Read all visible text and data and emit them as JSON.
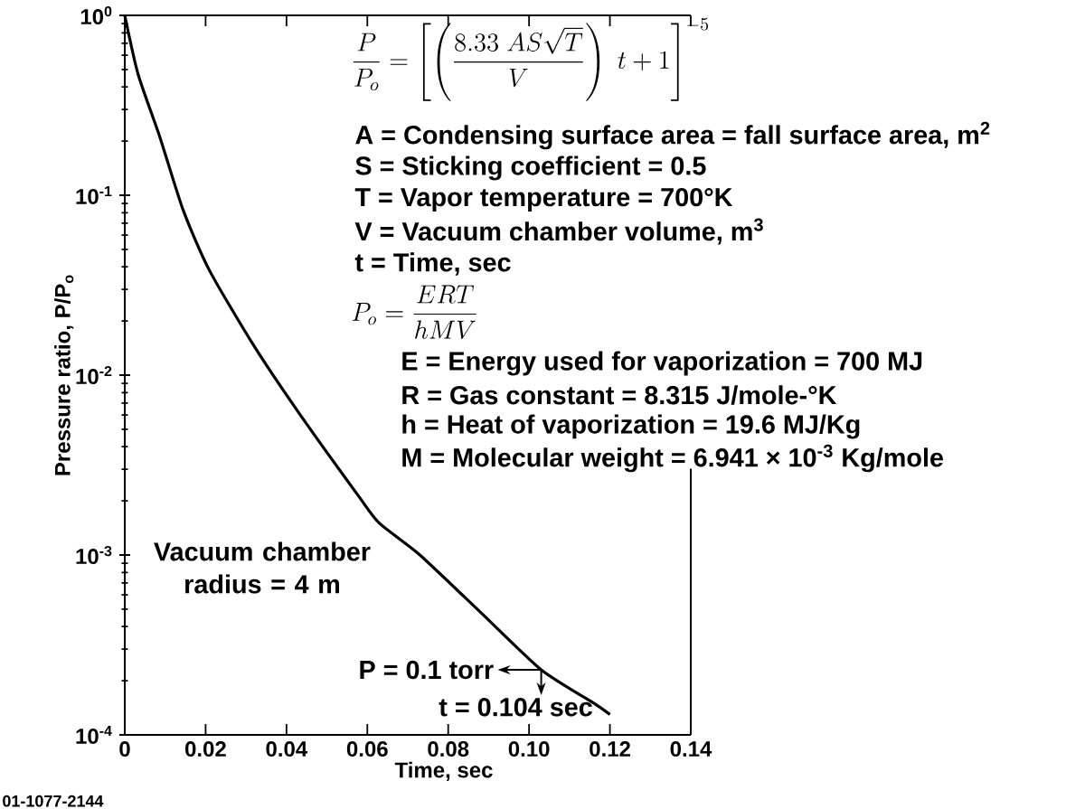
{
  "chart_data": {
    "type": "line",
    "xlabel": "Time, sec",
    "ylabel": "Pressure ratio, P/P$_{o}$",
    "log": "y",
    "marker": "none",
    "line_style": "solid",
    "xlim": [
      0,
      0.14
    ],
    "ylim": [
      0.0001,
      1
    ],
    "xticks": [
      0,
      0.02,
      0.04,
      0.06,
      0.08,
      {
        "value": 0.1,
        "label": "0.10"
      },
      0.12,
      0.14
    ],
    "yticks": [
      {
        "value": 1,
        "label": "10$^{0}$"
      },
      {
        "value": 0.1,
        "label": "10$^{-1}$"
      },
      {
        "value": 0.01,
        "label": "10$^{-2}$"
      },
      {
        "value": 0.001,
        "label": "10$^{-3}$"
      },
      {
        "value": 0.0001,
        "label": "10$^{-4}$"
      }
    ],
    "x": [
      0,
      0.0033,
      0.0087,
      0.0145,
      0.021,
      0.032,
      0.043,
      0.058,
      0.063,
      0.073,
      0.088,
      0.103,
      0.116,
      0.12
    ],
    "series": [
      {
        "color": "#000000",
        "values": [
          1.0,
          0.47,
          0.21,
          0.082,
          0.038,
          0.0145,
          0.0062,
          0.0021,
          0.0015,
          0.001,
          0.00048,
          0.00023,
          0.00015,
          0.00013
        ]
      }
    ],
    "annotations": [
      "\\frac{P}{P_o} = \\left[\\left(\\frac{8.33\\ AS\\sqrt{T}}{V}\\right)\\ t+1\\right]^{-5}",
      "A  =  Condensing surface area = fall surface area, m$^{2}$",
      "S  =  Sticking coefficient = 0.5",
      "T  =  Vapor temperature = 700°K",
      "V  =  Vacuum chamber volume, m$^{3}$",
      "t  =  Time, sec",
      "P_o = \\frac{ERT}{hMV}",
      "E  =  Energy used for vaporization = 700 MJ",
      "R  =  Gas constant = 8.315 J/mole-°K",
      "h  =  Heat of vaporization = 19.6 MJ/Kg",
      "M  =  Molecular weight = 6.941 × 10$^{-3}$ Kg/mole",
      "Vacuum chamber radius = 4 m",
      {
        "text": "P = 0.1 torr",
        "x": 0.103,
        "y": 0.00023
      },
      {
        "text": "t = 0.104 sec",
        "x": 0.103,
        "y": 0.00023
      },
      "01-1077-2144"
    ]
  }
}
